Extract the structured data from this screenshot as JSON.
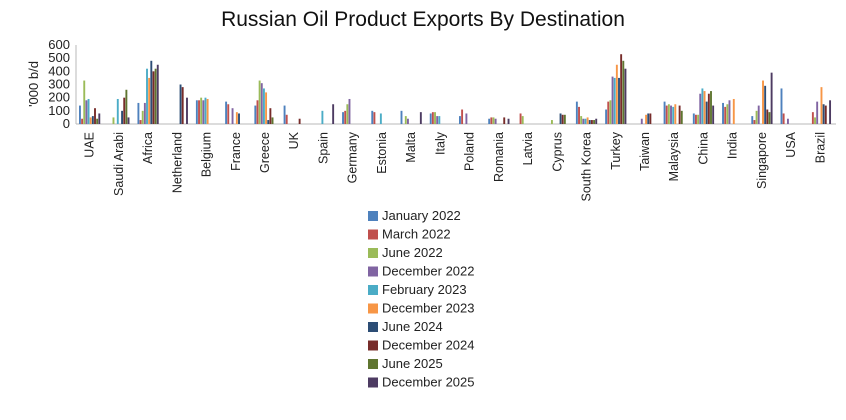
{
  "chart_data": {
    "type": "bar",
    "title": "Russian Oil Product Exports By Destination",
    "ylabel": "'000 b/d",
    "ylim": [
      0,
      600
    ],
    "yticks": [
      0,
      100,
      200,
      300,
      400,
      500,
      600
    ],
    "grid": false,
    "legend_position": "bottom",
    "categories": [
      "UAE",
      "Saudi Arabi",
      "Africa",
      "Netherland",
      "Belgium",
      "France",
      "Greece",
      "UK",
      "Spain",
      "Germany",
      "Estonia",
      "Malta",
      "Italy",
      "Poland",
      "Romania",
      "Latvia",
      "Cyprus",
      "South Korea",
      "Turkey",
      "Taiwan",
      "Malaysia",
      "China",
      "India",
      "Singapore",
      "USA",
      "Brazil"
    ],
    "series": [
      {
        "name": "January 2022",
        "color": "#4E81BD",
        "values": [
          140,
          0,
          160,
          0,
          180,
          170,
          140,
          140,
          0,
          90,
          100,
          100,
          80,
          60,
          40,
          0,
          0,
          170,
          110,
          0,
          170,
          80,
          160,
          60,
          270,
          0
        ]
      },
      {
        "name": "March 2022",
        "color": "#C0504D",
        "values": [
          40,
          0,
          30,
          0,
          180,
          150,
          180,
          70,
          0,
          100,
          90,
          0,
          90,
          110,
          50,
          80,
          0,
          130,
          170,
          0,
          140,
          70,
          130,
          30,
          80,
          90
        ]
      },
      {
        "name": "June 2022",
        "color": "#9BBB59",
        "values": [
          330,
          50,
          100,
          0,
          200,
          0,
          330,
          0,
          0,
          150,
          0,
          60,
          90,
          0,
          50,
          60,
          30,
          60,
          180,
          0,
          150,
          70,
          150,
          100,
          0,
          50
        ]
      },
      {
        "name": "December 2022",
        "color": "#8064A2",
        "values": [
          180,
          0,
          160,
          0,
          180,
          120,
          310,
          0,
          0,
          190,
          0,
          40,
          60,
          80,
          40,
          0,
          0,
          40,
          360,
          40,
          140,
          230,
          180,
          140,
          40,
          170
        ]
      },
      {
        "name": "February 2023",
        "color": "#4BACC6",
        "values": [
          190,
          190,
          420,
          0,
          200,
          0,
          270,
          0,
          100,
          0,
          80,
          0,
          60,
          0,
          0,
          0,
          0,
          40,
          350,
          0,
          130,
          270,
          0,
          0,
          0,
          0
        ]
      },
      {
        "name": "December 2023",
        "color": "#F79646",
        "values": [
          50,
          0,
          350,
          0,
          190,
          90,
          240,
          0,
          0,
          0,
          0,
          0,
          0,
          0,
          0,
          0,
          0,
          50,
          450,
          70,
          150,
          250,
          190,
          330,
          0,
          280
        ]
      },
      {
        "name": "June 2024",
        "color": "#2C4D75",
        "values": [
          60,
          100,
          480,
          300,
          0,
          80,
          30,
          0,
          0,
          0,
          0,
          0,
          0,
          0,
          0,
          0,
          80,
          30,
          350,
          80,
          0,
          170,
          0,
          290,
          0,
          150
        ]
      },
      {
        "name": "December 2024",
        "color": "#772C2A",
        "values": [
          120,
          200,
          400,
          280,
          0,
          0,
          120,
          40,
          0,
          0,
          0,
          0,
          0,
          0,
          50,
          0,
          70,
          30,
          530,
          80,
          140,
          230,
          0,
          110,
          0,
          140
        ]
      },
      {
        "name": "June 2025",
        "color": "#5F7530",
        "values": [
          40,
          260,
          420,
          0,
          0,
          0,
          50,
          0,
          0,
          0,
          0,
          0,
          0,
          0,
          0,
          0,
          70,
          30,
          480,
          0,
          100,
          250,
          0,
          90,
          0,
          0
        ]
      },
      {
        "name": "December 2025",
        "color": "#4D3B62",
        "values": [
          80,
          50,
          450,
          200,
          0,
          0,
          0,
          0,
          150,
          0,
          0,
          90,
          0,
          0,
          40,
          0,
          0,
          40,
          420,
          0,
          0,
          140,
          0,
          390,
          0,
          180
        ]
      }
    ]
  }
}
